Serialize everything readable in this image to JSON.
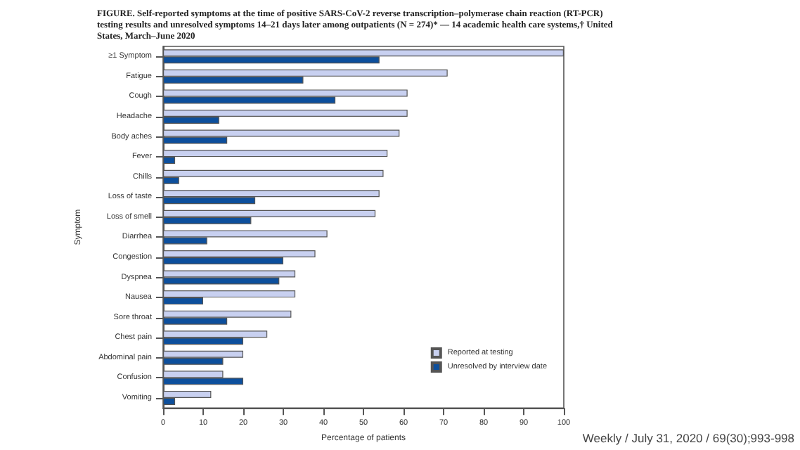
{
  "chart_data": {
    "type": "bar",
    "orientation": "horizontal",
    "title": "FIGURE. Self-reported symptoms at the time of positive SARS-CoV-2 reverse transcription–polymerase chain reaction (RT-PCR) testing results and unresolved symptoms 14–21 days later among outpatients (N = 274)* — 14 academic health care systems,† United States, March–June 2020",
    "xlabel": "Percentage of patients",
    "ylabel": "Symptom",
    "categories": [
      "≥1 Symptom",
      "Fatigue",
      "Cough",
      "Headache",
      "Body aches",
      "Fever",
      "Chills",
      "Loss of taste",
      "Loss of smell",
      "Diarrhea",
      "Congestion",
      "Dyspnea",
      "Nausea",
      "Sore throat",
      "Chest pain",
      "Abdominal pain",
      "Confusion",
      "Vomiting"
    ],
    "series": [
      {
        "name": "Reported at testing",
        "color": "#c8d0f0",
        "values": [
          100,
          71,
          61,
          61,
          59,
          56,
          55,
          54,
          53,
          41,
          38,
          33,
          33,
          32,
          26,
          20,
          15,
          12
        ]
      },
      {
        "name": "Unresolved by interview date",
        "color": "#0d4f9c",
        "values": [
          54,
          35,
          43,
          14,
          16,
          3,
          4,
          23,
          22,
          11,
          30,
          29,
          10,
          16,
          20,
          15,
          20,
          3
        ]
      }
    ],
    "xlim": [
      0,
      100
    ],
    "xticks": [
      0,
      10,
      20,
      30,
      40,
      50,
      60,
      70,
      80,
      90,
      100
    ],
    "grid": false,
    "legend": "bottom right",
    "annotations": [
      "Weekly / July 31, 2020 / 69(30);993-998"
    ]
  }
}
